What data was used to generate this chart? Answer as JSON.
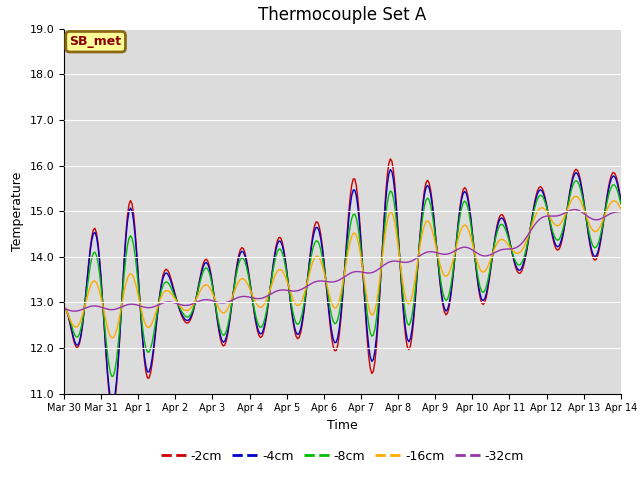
{
  "title": "Thermocouple Set A",
  "xlabel": "Time",
  "ylabel": "Temperature",
  "ylim": [
    11.0,
    19.0
  ],
  "yticks": [
    11.0,
    12.0,
    13.0,
    14.0,
    15.0,
    16.0,
    17.0,
    18.0,
    19.0
  ],
  "bg_color": "#dcdcdc",
  "fig_color": "#ffffff",
  "legend_label": "SB_met",
  "legend_bg": "#ffff99",
  "legend_border": "#8b6914",
  "legend_text_color": "#8b0000",
  "line_colors": {
    "-2cm": "#cc0000",
    "-4cm": "#0000cc",
    "-8cm": "#00bb00",
    "-16cm": "#ffaa00",
    "-32cm": "#9933aa"
  },
  "series_order": [
    "-2cm",
    "-4cm",
    "-8cm",
    "-16cm",
    "-32cm"
  ],
  "tick_labels": [
    "Mar 30",
    "Mar 31",
    "Apr 1",
    "Apr 2",
    "Apr 3",
    "Apr 4",
    "Apr 5",
    "Apr 6",
    "Apr 7",
    "Apr 8",
    "Apr 9",
    "Apr 10",
    "Apr 11",
    "Apr 12",
    "Apr 13",
    "Apr 14"
  ],
  "points_per_day": 24,
  "num_days": 15,
  "base_trend": [
    12.85,
    12.9,
    12.95,
    13.0,
    13.1,
    13.2,
    13.35,
    13.5,
    13.7,
    13.9,
    14.1,
    14.15,
    14.15,
    14.9,
    14.95,
    14.95
  ],
  "amp_2cm": [
    0.15,
    2.0,
    2.1,
    0.5,
    1.0,
    1.0,
    1.15,
    1.4,
    2.2,
    2.2,
    1.5,
    1.3,
    0.75,
    0.8,
    0.95,
    0.95
  ],
  "amp_4cm": [
    0.1,
    1.95,
    2.0,
    0.45,
    0.95,
    0.95,
    1.1,
    1.3,
    2.0,
    2.05,
    1.45,
    1.25,
    0.7,
    0.75,
    0.9,
    0.9
  ],
  "amp_8cm": [
    0.15,
    1.5,
    1.5,
    0.35,
    0.85,
    0.85,
    0.95,
    1.0,
    1.5,
    1.7,
    1.25,
    1.1,
    0.6,
    0.65,
    0.75,
    0.75
  ],
  "amp_16cm": [
    0.35,
    0.75,
    0.75,
    0.25,
    0.4,
    0.4,
    0.5,
    0.7,
    1.1,
    1.3,
    0.75,
    0.6,
    0.3,
    0.35,
    0.4,
    0.4
  ],
  "phase_shift_2cm": 0.5,
  "phase_shift_4cm": 0.52,
  "phase_shift_8cm": 0.6,
  "phase_shift_16cm": 0.75
}
